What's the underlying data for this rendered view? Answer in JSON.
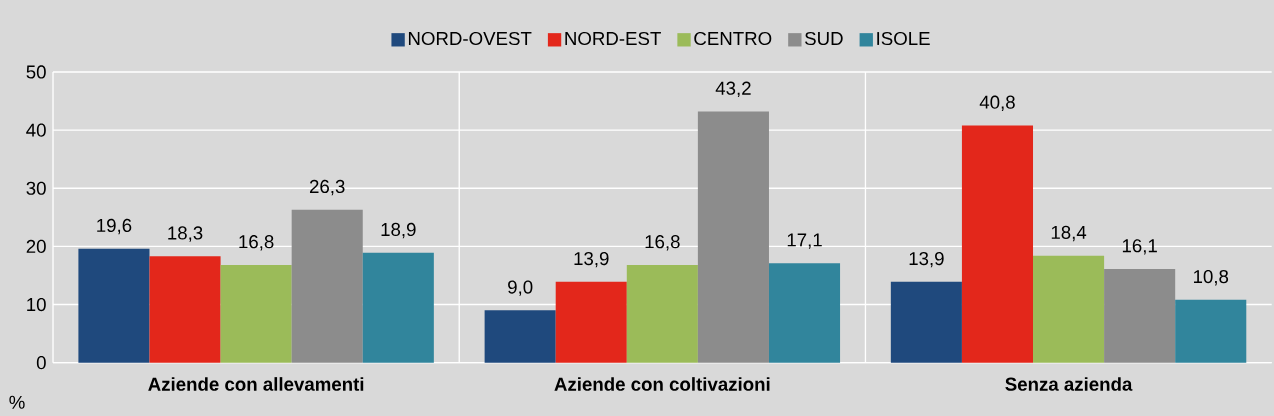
{
  "chart_data": {
    "type": "bar",
    "ylabel": "%",
    "categories": [
      "Aziende con allevamenti",
      "Aziende con coltivazioni",
      "Senza azienda"
    ],
    "series": [
      {
        "name": "NORD-OVEST",
        "color": "#1f497d",
        "values": [
          19.6,
          9.0,
          13.9
        ],
        "value_labels": [
          "19,6",
          "9,0",
          "13,9"
        ]
      },
      {
        "name": "NORD-EST",
        "color": "#e3271b",
        "values": [
          18.3,
          13.9,
          40.8
        ],
        "value_labels": [
          "18,3",
          "13,9",
          "40,8"
        ]
      },
      {
        "name": "CENTRO",
        "color": "#9bbb59",
        "values": [
          16.8,
          16.8,
          18.4
        ],
        "value_labels": [
          "16,8",
          "16,8",
          "18,4"
        ]
      },
      {
        "name": "SUD",
        "color": "#8c8c8c",
        "values": [
          26.3,
          43.2,
          16.1
        ],
        "value_labels": [
          "26,3",
          "43,2",
          "16,1"
        ]
      },
      {
        "name": "ISOLE",
        "color": "#31859c",
        "values": [
          18.9,
          17.1,
          10.8
        ],
        "value_labels": [
          "18,9",
          "17,1",
          "10,8"
        ]
      }
    ],
    "ylim": [
      0,
      50
    ],
    "yticks": [
      0,
      10,
      20,
      30,
      40,
      50
    ],
    "grid": true,
    "legend": "top"
  }
}
